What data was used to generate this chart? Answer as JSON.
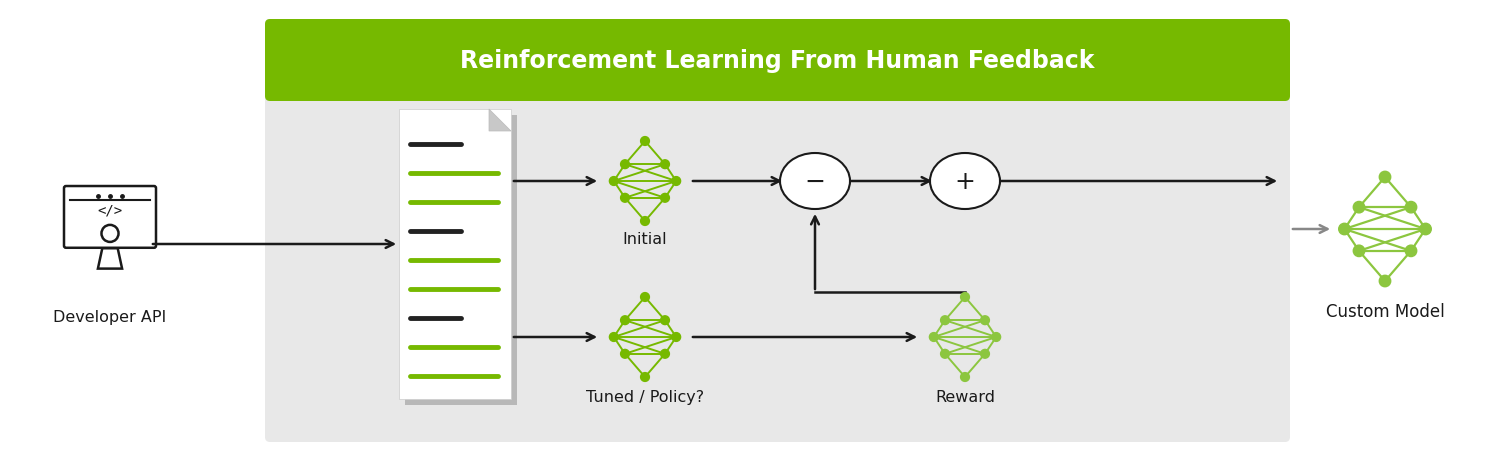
{
  "title": "Reinforcement Learning From Human Feedback",
  "title_bg_color": "#76b900",
  "title_text_color": "#ffffff",
  "box_bg_color": "#e8e8e8",
  "white_bg": "#ffffff",
  "green_color": "#76b900",
  "black_color": "#1a1a1a",
  "gray_color": "#888888",
  "labels": {
    "developer_api": "Developer API",
    "initial": "Initial",
    "tuned": "Tuned / Policy?",
    "reward": "Reward",
    "custom_model": "Custom Model"
  }
}
